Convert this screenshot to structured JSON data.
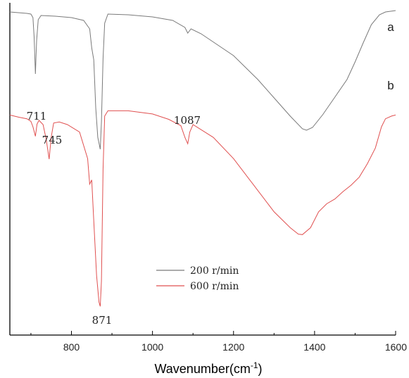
{
  "chart_data": {
    "type": "line",
    "xlabel_main": "Wavenumber(cm",
    "xlabel_sup": "-1",
    "xlabel_close": ")",
    "xlim": [
      648,
      1600
    ],
    "xticks": [
      800,
      1000,
      1200,
      1400,
      1600
    ],
    "xtick_labels": [
      "800",
      "1000",
      "1200",
      "1400",
      "1600"
    ],
    "y_ticks_shown": false,
    "grid": false,
    "legend_position": "bottom-center",
    "series": [
      {
        "name": "200 r/min",
        "curve_label": "a",
        "color": "#7a7a7a",
        "points": [
          [
            648,
            4
          ],
          [
            690,
            6
          ],
          [
            700,
            7
          ],
          [
            705,
            12
          ],
          [
            708,
            40
          ],
          [
            711,
            92
          ],
          [
            714,
            45
          ],
          [
            718,
            15
          ],
          [
            725,
            9
          ],
          [
            760,
            10
          ],
          [
            800,
            12
          ],
          [
            830,
            16
          ],
          [
            845,
            28
          ],
          [
            850,
            55
          ],
          [
            855,
            72
          ],
          [
            860,
            140
          ],
          [
            865,
            182
          ],
          [
            871,
            199
          ],
          [
            874,
            160
          ],
          [
            878,
            70
          ],
          [
            882,
            20
          ],
          [
            890,
            7
          ],
          [
            940,
            8
          ],
          [
            1000,
            11
          ],
          [
            1050,
            16
          ],
          [
            1080,
            26
          ],
          [
            1087,
            34
          ],
          [
            1095,
            28
          ],
          [
            1120,
            35
          ],
          [
            1200,
            66
          ],
          [
            1260,
            100
          ],
          [
            1300,
            126
          ],
          [
            1340,
            152
          ],
          [
            1370,
            170
          ],
          [
            1380,
            172
          ],
          [
            1395,
            168
          ],
          [
            1420,
            150
          ],
          [
            1450,
            125
          ],
          [
            1480,
            100
          ],
          [
            1500,
            75
          ],
          [
            1520,
            48
          ],
          [
            1540,
            22
          ],
          [
            1560,
            8
          ],
          [
            1575,
            4
          ],
          [
            1600,
            2
          ]
        ]
      },
      {
        "name": "600 r/min",
        "curve_label": "b",
        "color": "#e05050",
        "points": [
          [
            648,
            88
          ],
          [
            670,
            92
          ],
          [
            690,
            95
          ],
          [
            700,
            100
          ],
          [
            705,
            110
          ],
          [
            711,
            128
          ],
          [
            715,
            105
          ],
          [
            720,
            98
          ],
          [
            730,
            106
          ],
          [
            738,
            135
          ],
          [
            745,
            171
          ],
          [
            750,
            130
          ],
          [
            756,
            103
          ],
          [
            770,
            101
          ],
          [
            790,
            106
          ],
          [
            820,
            120
          ],
          [
            840,
            170
          ],
          [
            845,
            218
          ],
          [
            850,
            210
          ],
          [
            856,
            300
          ],
          [
            862,
            390
          ],
          [
            868,
            440
          ],
          [
            871,
            448
          ],
          [
            874,
            400
          ],
          [
            878,
            190
          ],
          [
            882,
            90
          ],
          [
            890,
            80
          ],
          [
            940,
            80
          ],
          [
            1000,
            86
          ],
          [
            1040,
            96
          ],
          [
            1070,
            108
          ],
          [
            1080,
            130
          ],
          [
            1087,
            142
          ],
          [
            1092,
            120
          ],
          [
            1100,
            106
          ],
          [
            1150,
            130
          ],
          [
            1200,
            170
          ],
          [
            1250,
            220
          ],
          [
            1300,
            270
          ],
          [
            1340,
            300
          ],
          [
            1360,
            312
          ],
          [
            1370,
            313
          ],
          [
            1390,
            300
          ],
          [
            1410,
            270
          ],
          [
            1430,
            255
          ],
          [
            1450,
            246
          ],
          [
            1470,
            232
          ],
          [
            1490,
            220
          ],
          [
            1510,
            205
          ],
          [
            1530,
            180
          ],
          [
            1550,
            150
          ],
          [
            1565,
            110
          ],
          [
            1575,
            95
          ],
          [
            1590,
            90
          ],
          [
            1600,
            88
          ]
        ]
      }
    ],
    "annotations": [
      {
        "text": "711",
        "x": 711
      },
      {
        "text": "745",
        "x": 745
      },
      {
        "text": "871",
        "x": 871
      },
      {
        "text": "1087",
        "x": 1087
      }
    ]
  }
}
